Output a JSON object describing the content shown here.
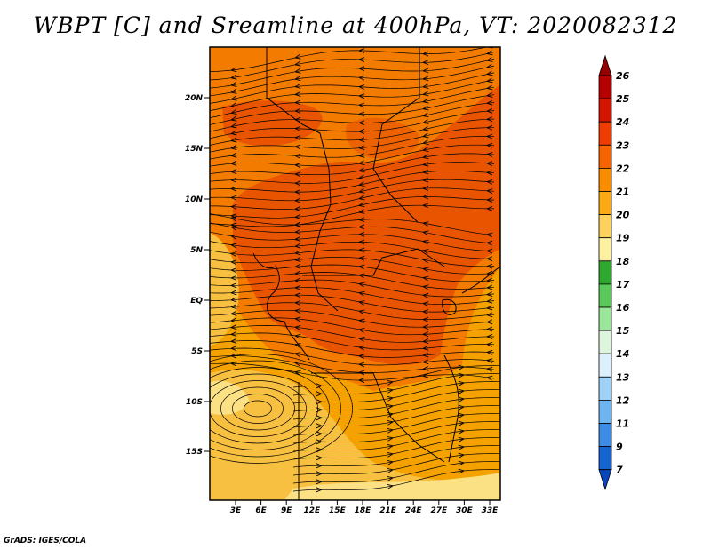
{
  "title": "WBPT [C] and Sreamline at 400hPa, VT: 2020082312",
  "credit": "GrADS: IGES/COLA",
  "map": {
    "lat_labels": [
      "20N",
      "15N",
      "10N",
      "5N",
      "EQ",
      "5S",
      "10S",
      "15S"
    ],
    "lon_labels": [
      "3E",
      "6E",
      "9E",
      "12E",
      "15E",
      "18E",
      "21E",
      "24E",
      "27E",
      "30E",
      "33E"
    ],
    "fill_colors": {
      "dark": "#e85400",
      "mid": "#f27b00",
      "base": "#f5a200",
      "light": "#f8c040",
      "pale": "#fbe084"
    }
  },
  "colorbar": {
    "labels": [
      "26",
      "25",
      "24",
      "23",
      "22",
      "21",
      "20",
      "19",
      "18",
      "17",
      "16",
      "15",
      "14",
      "13",
      "12",
      "11",
      "9",
      "7"
    ],
    "colors": [
      "#960000",
      "#b40000",
      "#d21400",
      "#ef3c00",
      "#f56400",
      "#f98c00",
      "#fcaa14",
      "#fcd25a",
      "#fdf0a0",
      "#2fa82f",
      "#5ac85a",
      "#9be69b",
      "#dcf5dc",
      "#dcf0fc",
      "#a0d2f8",
      "#6eb4f0",
      "#3c8ce6",
      "#1464d2",
      "#0a46be"
    ]
  }
}
